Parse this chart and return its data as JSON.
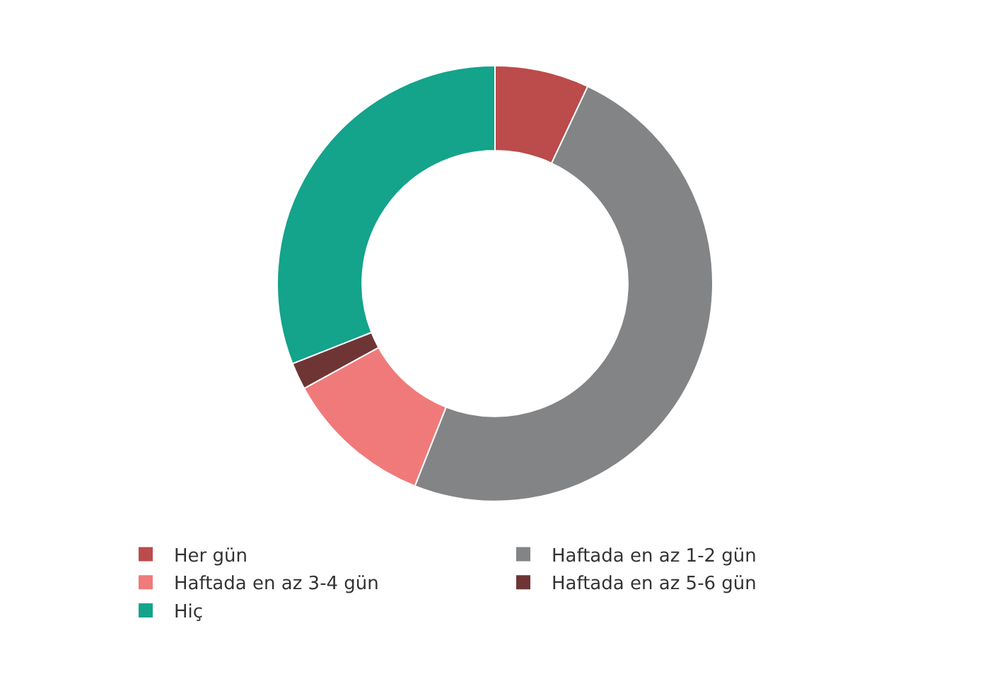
{
  "chart_data": {
    "type": "donut",
    "categories": [
      "Her gün",
      "Haftada en az 1-2 gün",
      "Haftada en az 3-4 gün",
      "Haftada en az 5-6 gün",
      "Hiç"
    ],
    "values": [
      7,
      49,
      11,
      2,
      31
    ],
    "colors": [
      "#bc4b4b",
      "#838485",
      "#f07a7a",
      "#6f3535",
      "#14a38b"
    ],
    "legend": "bottom"
  }
}
